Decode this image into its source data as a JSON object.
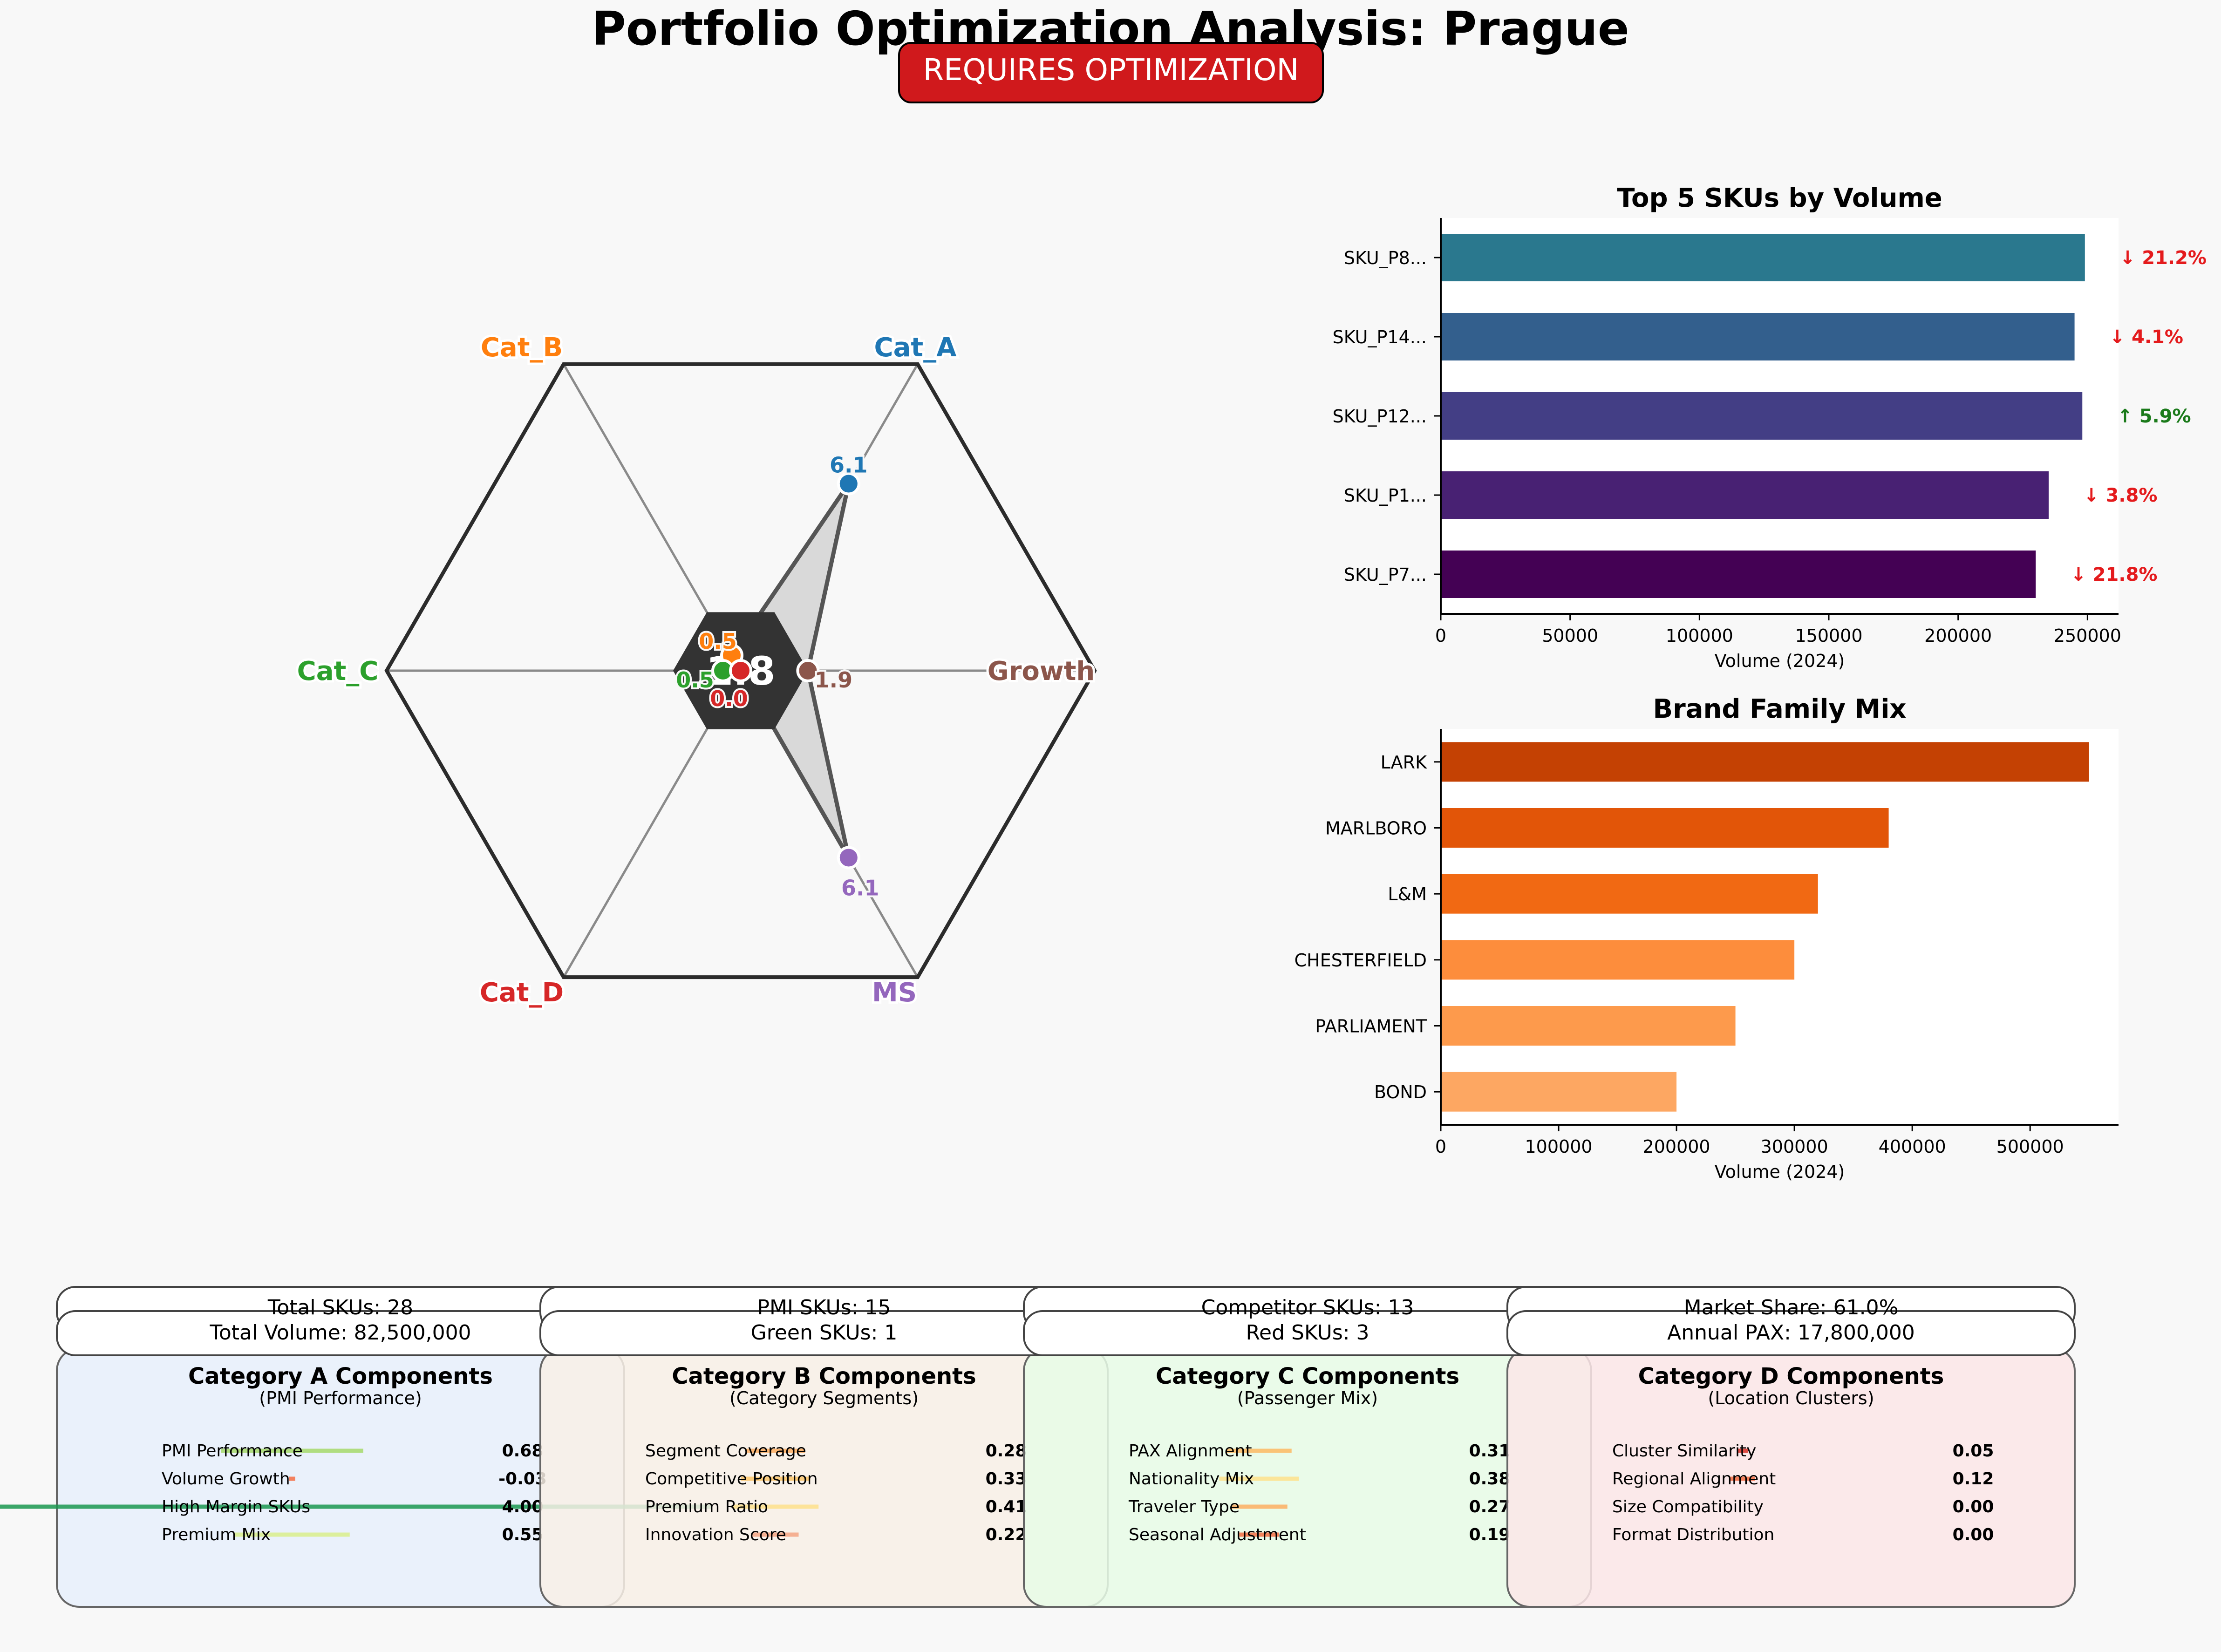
{
  "title": "Portfolio Optimization Analysis: Prague",
  "status_badge": {
    "label": "REQUIRES OPTIMIZATION",
    "color": "#d0191c"
  },
  "radar": {
    "center_score": "1.8",
    "axes": [
      {
        "label": "Cat_A",
        "value": 6.1,
        "value_label": "6.1",
        "color": "#1f77b4"
      },
      {
        "label": "Cat_B",
        "value": 0.5,
        "value_label": "0.5",
        "color": "#ff7f0e"
      },
      {
        "label": "Cat_C",
        "value": 0.5,
        "value_label": "0.5",
        "color": "#2ca02c"
      },
      {
        "label": "Cat_D",
        "value": 0.0,
        "value_label": "0.0",
        "color": "#d62728"
      },
      {
        "label": "MS",
        "value": 6.1,
        "value_label": "6.1",
        "color": "#9467bd"
      },
      {
        "label": "Growth",
        "value": 1.9,
        "value_label": "1.9",
        "color": "#8c564b"
      }
    ],
    "max_value": 10
  },
  "chart_data": [
    {
      "type": "bar",
      "orientation": "horizontal",
      "title": "Top 5 SKUs by Volume",
      "xlabel": "Volume (2024)",
      "xlim": [
        0,
        262000
      ],
      "xticks": [
        "0",
        "50000",
        "100000",
        "150000",
        "200000",
        "250000"
      ],
      "categories": [
        "SKU_P8...",
        "SKU_P14...",
        "SKU_P12...",
        "SKU_P1...",
        "SKU_P7..."
      ],
      "values": [
        249000,
        245000,
        248000,
        235000,
        230000
      ],
      "colors": [
        "#2a788e",
        "#335f8d",
        "#433e85",
        "#482173",
        "#440154"
      ],
      "annotations": [
        {
          "text": "↓ 21.2%",
          "color": "#e41a1c"
        },
        {
          "text": "↓ 4.1%",
          "color": "#e41a1c"
        },
        {
          "text": "↑ 5.9%",
          "color": "#1a7a1a"
        },
        {
          "text": "↓ 3.8%",
          "color": "#e41a1c"
        },
        {
          "text": "↓ 21.8%",
          "color": "#e41a1c"
        }
      ]
    },
    {
      "type": "bar",
      "orientation": "horizontal",
      "title": "Brand Family Mix",
      "xlabel": "Volume (2024)",
      "xlim": [
        0,
        575000
      ],
      "xticks": [
        "0",
        "100000",
        "200000",
        "300000",
        "400000",
        "500000"
      ],
      "categories": [
        "LARK",
        "MARLBORO",
        "L&M",
        "CHESTERFIELD",
        "PARLIAMENT",
        "BOND"
      ],
      "values": [
        550000,
        380000,
        320000,
        300000,
        250000,
        200000
      ],
      "colors": [
        "#c44103",
        "#e25508",
        "#f16913",
        "#fd8d3c",
        "#fd9a4c",
        "#fda762"
      ]
    }
  ],
  "stats": [
    {
      "line1": "Total SKUs: 28",
      "line2": "Total Volume: 82,500,000"
    },
    {
      "line1": "PMI SKUs: 15",
      "line2": "Green SKUs: 1"
    },
    {
      "line1": "Competitor SKUs: 13",
      "line2": "Red SKUs: 3"
    },
    {
      "line1": "Market Share: 61.0%",
      "line2": "Annual PAX: 17,800,000"
    }
  ],
  "categories": [
    {
      "title": "Category A Components",
      "subtitle": "(PMI Performance)",
      "bg": "#e8f0fb",
      "rows": [
        {
          "label": "PMI Performance",
          "value": "0.68",
          "amount": 0.68,
          "color": "#a6d96a"
        },
        {
          "label": "Volume Growth",
          "value": "-0.03",
          "amount": -0.03,
          "color": "#f46d43"
        },
        {
          "label": "High Margin SKUs",
          "value": "4.00",
          "amount": 4.0,
          "color": "#1a9850"
        },
        {
          "label": "Premium Mix",
          "value": "0.55",
          "amount": 0.55,
          "color": "#d9ef8b"
        }
      ]
    },
    {
      "title": "Category B Components",
      "subtitle": "(Category Segments)",
      "bg": "#f8f0e6",
      "rows": [
        {
          "label": "Segment Coverage",
          "value": "0.28",
          "amount": 0.28,
          "color": "#fdae61"
        },
        {
          "label": "Competitive Position",
          "value": "0.33",
          "amount": 0.33,
          "color": "#fdc76a"
        },
        {
          "label": "Premium Ratio",
          "value": "0.41",
          "amount": 0.41,
          "color": "#fee08b"
        },
        {
          "label": "Innovation Score",
          "value": "0.22",
          "amount": 0.22,
          "color": "#f4a582"
        }
      ]
    },
    {
      "title": "Category C Components",
      "subtitle": "(Passenger Mix)",
      "bg": "#e8fbe6",
      "rows": [
        {
          "label": "PAX Alignment",
          "value": "0.31",
          "amount": 0.31,
          "color": "#fdb863"
        },
        {
          "label": "Nationality Mix",
          "value": "0.38",
          "amount": 0.38,
          "color": "#fee08b"
        },
        {
          "label": "Traveler Type",
          "value": "0.27",
          "amount": 0.27,
          "color": "#fdae61"
        },
        {
          "label": "Seasonal Adjustment",
          "value": "0.19",
          "amount": 0.19,
          "color": "#f46d43"
        }
      ]
    },
    {
      "title": "Category D Components",
      "subtitle": "(Location Clusters)",
      "bg": "#fbe6e8",
      "rows": [
        {
          "label": "Cluster Similarity",
          "value": "0.05",
          "amount": 0.05,
          "color": "#d73027"
        },
        {
          "label": "Regional Alignment",
          "value": "0.12",
          "amount": 0.12,
          "color": "#f46d43"
        },
        {
          "label": "Size Compatibility",
          "value": "0.00",
          "amount": 0.0,
          "color": "#d73027"
        },
        {
          "label": "Format Distribution",
          "value": "0.00",
          "amount": 0.0,
          "color": "#d73027"
        }
      ]
    }
  ]
}
